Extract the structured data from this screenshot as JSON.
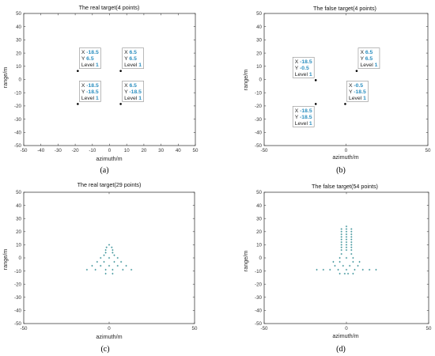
{
  "colors": {
    "axes": "#404040",
    "point": "#000000",
    "marker": "#2e8b92",
    "datatip_value": "#2a8ebf"
  },
  "panels": [
    {
      "caption": "(a)",
      "chart_data": {
        "type": "scatter",
        "title": "The real target(4 points)",
        "xlabel": "azimuth/m",
        "ylabel": "range/m",
        "xlim": [
          -50,
          50
        ],
        "ylim": [
          -50,
          50
        ],
        "xticks": [
          "-50",
          "-40",
          "-30",
          "-20",
          "-10",
          "0",
          "10",
          "20",
          "30",
          "40",
          "50"
        ],
        "yticks": [
          "-50",
          "-40",
          "-30",
          "-20",
          "-10",
          "0",
          "10",
          "20",
          "30",
          "40",
          "50"
        ],
        "marker_style": "dot",
        "points": [
          {
            "x": -18.5,
            "y": 6.5
          },
          {
            "x": 6.5,
            "y": 6.5
          },
          {
            "x": -18.5,
            "y": -18.5
          },
          {
            "x": 6.5,
            "y": -18.5
          }
        ],
        "datatips": [
          {
            "x_label": "X",
            "x": "-18.5",
            "y_label": "Y",
            "y": "6.5",
            "level_label": "Level",
            "level": "1",
            "anchor": "above-right"
          },
          {
            "x_label": "X",
            "x": "6.5",
            "y_label": "Y",
            "y": "6.5",
            "level_label": "Level",
            "level": "1",
            "anchor": "above-right"
          },
          {
            "x_label": "X",
            "x": "-18.5",
            "y_label": "Y",
            "y": "-18.5",
            "level_label": "Level",
            "level": "1",
            "anchor": "above-right"
          },
          {
            "x_label": "X",
            "x": "6.5",
            "y_label": "Y",
            "y": "-18.5",
            "level_label": "Level",
            "level": "1",
            "anchor": "above-right"
          }
        ]
      }
    },
    {
      "caption": "(b)",
      "chart_data": {
        "type": "scatter",
        "title": "The false target(4 points)",
        "xlabel": "azimuth/m",
        "ylabel": "range/m",
        "xlim": [
          -50,
          50
        ],
        "ylim": [
          -50,
          50
        ],
        "xticks": [
          "-50",
          "0",
          "50"
        ],
        "yticks": [
          "-50",
          "-40",
          "-30",
          "-20",
          "-10",
          "0",
          "10",
          "20",
          "30",
          "40",
          "50"
        ],
        "marker_style": "dot",
        "points": [
          {
            "x": -18.5,
            "y": -0.5
          },
          {
            "x": 6.5,
            "y": 6.5
          },
          {
            "x": -0.5,
            "y": -18.5
          },
          {
            "x": -18.5,
            "y": -18.5
          }
        ],
        "datatips": [
          {
            "x_label": "X",
            "x": "-18.5",
            "y_label": "Y",
            "y": "-0.5",
            "level_label": "Level",
            "level": "1",
            "anchor": "above-left"
          },
          {
            "x_label": "X",
            "x": "6.5",
            "y_label": "Y",
            "y": "6.5",
            "level_label": "Level",
            "level": "1",
            "anchor": "above-right"
          },
          {
            "x_label": "X",
            "x": "-0.5",
            "y_label": "Y",
            "y": "-18.5",
            "level_label": "Level",
            "level": "1",
            "anchor": "above-right"
          },
          {
            "x_label": "X",
            "x": "-18.5",
            "y_label": "Y",
            "y": "-18.5",
            "level_label": "Level",
            "level": "1",
            "anchor": "below-left"
          }
        ]
      }
    },
    {
      "caption": "(c)",
      "chart_data": {
        "type": "scatter",
        "title": "The real target(29 points)",
        "xlabel": "azimuth/m",
        "ylabel": "range/m",
        "xlim": [
          -50,
          50
        ],
        "ylim": [
          -50,
          50
        ],
        "xticks": [
          "-50",
          "0",
          "50"
        ],
        "yticks": [
          "-50",
          "-40",
          "-30",
          "-20",
          "-10",
          "0",
          "10",
          "20",
          "30",
          "40",
          "50"
        ],
        "marker_style": "plus",
        "points": [
          {
            "x": 0,
            "y": 10
          },
          {
            "x": -1.5,
            "y": 8
          },
          {
            "x": 1.5,
            "y": 8
          },
          {
            "x": -2,
            "y": 6
          },
          {
            "x": 2,
            "y": 6
          },
          {
            "x": -2,
            "y": 4
          },
          {
            "x": 2,
            "y": 4
          },
          {
            "x": -3,
            "y": 2
          },
          {
            "x": 3,
            "y": 2
          },
          {
            "x": 0,
            "y": 0
          },
          {
            "x": -5,
            "y": 0
          },
          {
            "x": 5,
            "y": 0
          },
          {
            "x": -7,
            "y": -3
          },
          {
            "x": -3,
            "y": -3
          },
          {
            "x": 3,
            "y": -3
          },
          {
            "x": 7,
            "y": -3
          },
          {
            "x": -10,
            "y": -6
          },
          {
            "x": -5,
            "y": -6
          },
          {
            "x": 0,
            "y": -6
          },
          {
            "x": 5,
            "y": -6
          },
          {
            "x": 10,
            "y": -6
          },
          {
            "x": -13,
            "y": -9
          },
          {
            "x": -8,
            "y": -9
          },
          {
            "x": -2,
            "y": -9
          },
          {
            "x": 2,
            "y": -9
          },
          {
            "x": 8,
            "y": -9
          },
          {
            "x": 13,
            "y": -9
          },
          {
            "x": -2,
            "y": -12
          },
          {
            "x": 2,
            "y": -12
          }
        ],
        "datatips": []
      }
    },
    {
      "caption": "(d)",
      "chart_data": {
        "type": "scatter",
        "title": "The false target(54 points)",
        "xlabel": "azimuth/m",
        "ylabel": "range/m",
        "xlim": [
          -50,
          50
        ],
        "ylim": [
          -50,
          50
        ],
        "xticks": [
          "-50",
          "0",
          "50"
        ],
        "yticks": [
          "-50",
          "-40",
          "-30",
          "-20",
          "-10",
          "0",
          "10",
          "20",
          "30",
          "40",
          "50"
        ],
        "marker_style": "plus",
        "points": [
          {
            "x": 0,
            "y": 24
          },
          {
            "x": -3,
            "y": 22
          },
          {
            "x": 0,
            "y": 22
          },
          {
            "x": 3,
            "y": 22
          },
          {
            "x": -3,
            "y": 20
          },
          {
            "x": 0,
            "y": 20
          },
          {
            "x": 3,
            "y": 20
          },
          {
            "x": -3,
            "y": 18
          },
          {
            "x": 0,
            "y": 18
          },
          {
            "x": 3,
            "y": 18
          },
          {
            "x": -3,
            "y": 16
          },
          {
            "x": 0,
            "y": 16
          },
          {
            "x": 3,
            "y": 16
          },
          {
            "x": -3,
            "y": 14
          },
          {
            "x": 0,
            "y": 14
          },
          {
            "x": 3,
            "y": 14
          },
          {
            "x": -3,
            "y": 12
          },
          {
            "x": 0,
            "y": 12
          },
          {
            "x": 3,
            "y": 12
          },
          {
            "x": -3,
            "y": 10
          },
          {
            "x": 0,
            "y": 10
          },
          {
            "x": 3,
            "y": 10
          },
          {
            "x": -3,
            "y": 8
          },
          {
            "x": 0,
            "y": 8
          },
          {
            "x": 3,
            "y": 8
          },
          {
            "x": -3,
            "y": 6
          },
          {
            "x": 0,
            "y": 6
          },
          {
            "x": 3,
            "y": 6
          },
          {
            "x": -3,
            "y": 3
          },
          {
            "x": 3,
            "y": 3
          },
          {
            "x": -4,
            "y": 0
          },
          {
            "x": 0,
            "y": 0
          },
          {
            "x": 4,
            "y": 0
          },
          {
            "x": -8,
            "y": -3
          },
          {
            "x": -4,
            "y": -3
          },
          {
            "x": 4,
            "y": -3
          },
          {
            "x": 8,
            "y": -3
          },
          {
            "x": -7,
            "y": -6
          },
          {
            "x": -2,
            "y": -6
          },
          {
            "x": 2,
            "y": -6
          },
          {
            "x": 7,
            "y": -6
          },
          {
            "x": -18,
            "y": -9
          },
          {
            "x": -14,
            "y": -9
          },
          {
            "x": -10,
            "y": -9
          },
          {
            "x": -5,
            "y": -9
          },
          {
            "x": 0,
            "y": -9
          },
          {
            "x": 5,
            "y": -9
          },
          {
            "x": 10,
            "y": -9
          },
          {
            "x": 14,
            "y": -9
          },
          {
            "x": 18,
            "y": -9
          },
          {
            "x": -4,
            "y": -12
          },
          {
            "x": -1,
            "y": -12
          },
          {
            "x": 1,
            "y": -12
          },
          {
            "x": 4,
            "y": -12
          }
        ],
        "datatips": []
      }
    }
  ]
}
